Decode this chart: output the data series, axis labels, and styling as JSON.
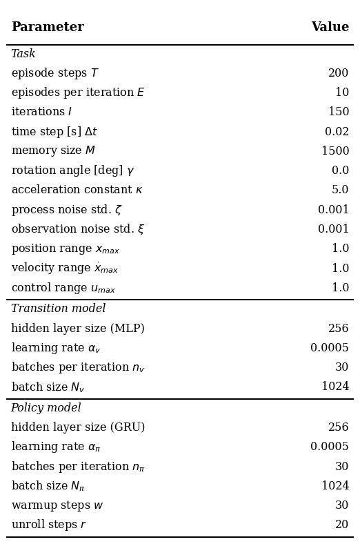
{
  "header": [
    "Parameter",
    "Value"
  ],
  "sections": [
    {
      "title": "Task",
      "rows": [
        [
          "episode steps $T$",
          "200"
        ],
        [
          "episodes per iteration $E$",
          "10"
        ],
        [
          "iterations $I$",
          "150"
        ],
        [
          "time step [s] $\\Delta t$",
          "0.02"
        ],
        [
          "memory size $M$",
          "1500"
        ],
        [
          "rotation angle [deg] $\\gamma$",
          "0.0"
        ],
        [
          "acceleration constant $\\kappa$",
          "5.0"
        ],
        [
          "process noise std. $\\zeta$",
          "0.001"
        ],
        [
          "observation noise std. $\\xi$",
          "0.001"
        ],
        [
          "position range $x_{max}$",
          "1.0"
        ],
        [
          "velocity range $\\dot{x}_{max}$",
          "1.0"
        ],
        [
          "control range $u_{max}$",
          "1.0"
        ]
      ]
    },
    {
      "title": "Transition model",
      "rows": [
        [
          "hidden layer size (MLP)",
          "256"
        ],
        [
          "learning rate $\\alpha_v$",
          "0.0005"
        ],
        [
          "batches per iteration $n_v$",
          "30"
        ],
        [
          "batch size $N_v$",
          "1024"
        ]
      ]
    },
    {
      "title": "Policy model",
      "rows": [
        [
          "hidden layer size (GRU)",
          "256"
        ],
        [
          "learning rate $\\alpha_{\\pi}$",
          "0.0005"
        ],
        [
          "batches per iteration $n_{\\pi}$",
          "30"
        ],
        [
          "batch size $N_{\\pi}$",
          "1024"
        ],
        [
          "warmup steps $w$",
          "30"
        ],
        [
          "unroll steps $r$",
          "20"
        ]
      ]
    }
  ],
  "fig_width": 5.22,
  "fig_height": 7.88,
  "dpi": 100,
  "background_color": "#ffffff",
  "text_color": "#000000",
  "header_fontsize": 13,
  "row_fontsize": 11.5,
  "section_fontsize": 11.5
}
